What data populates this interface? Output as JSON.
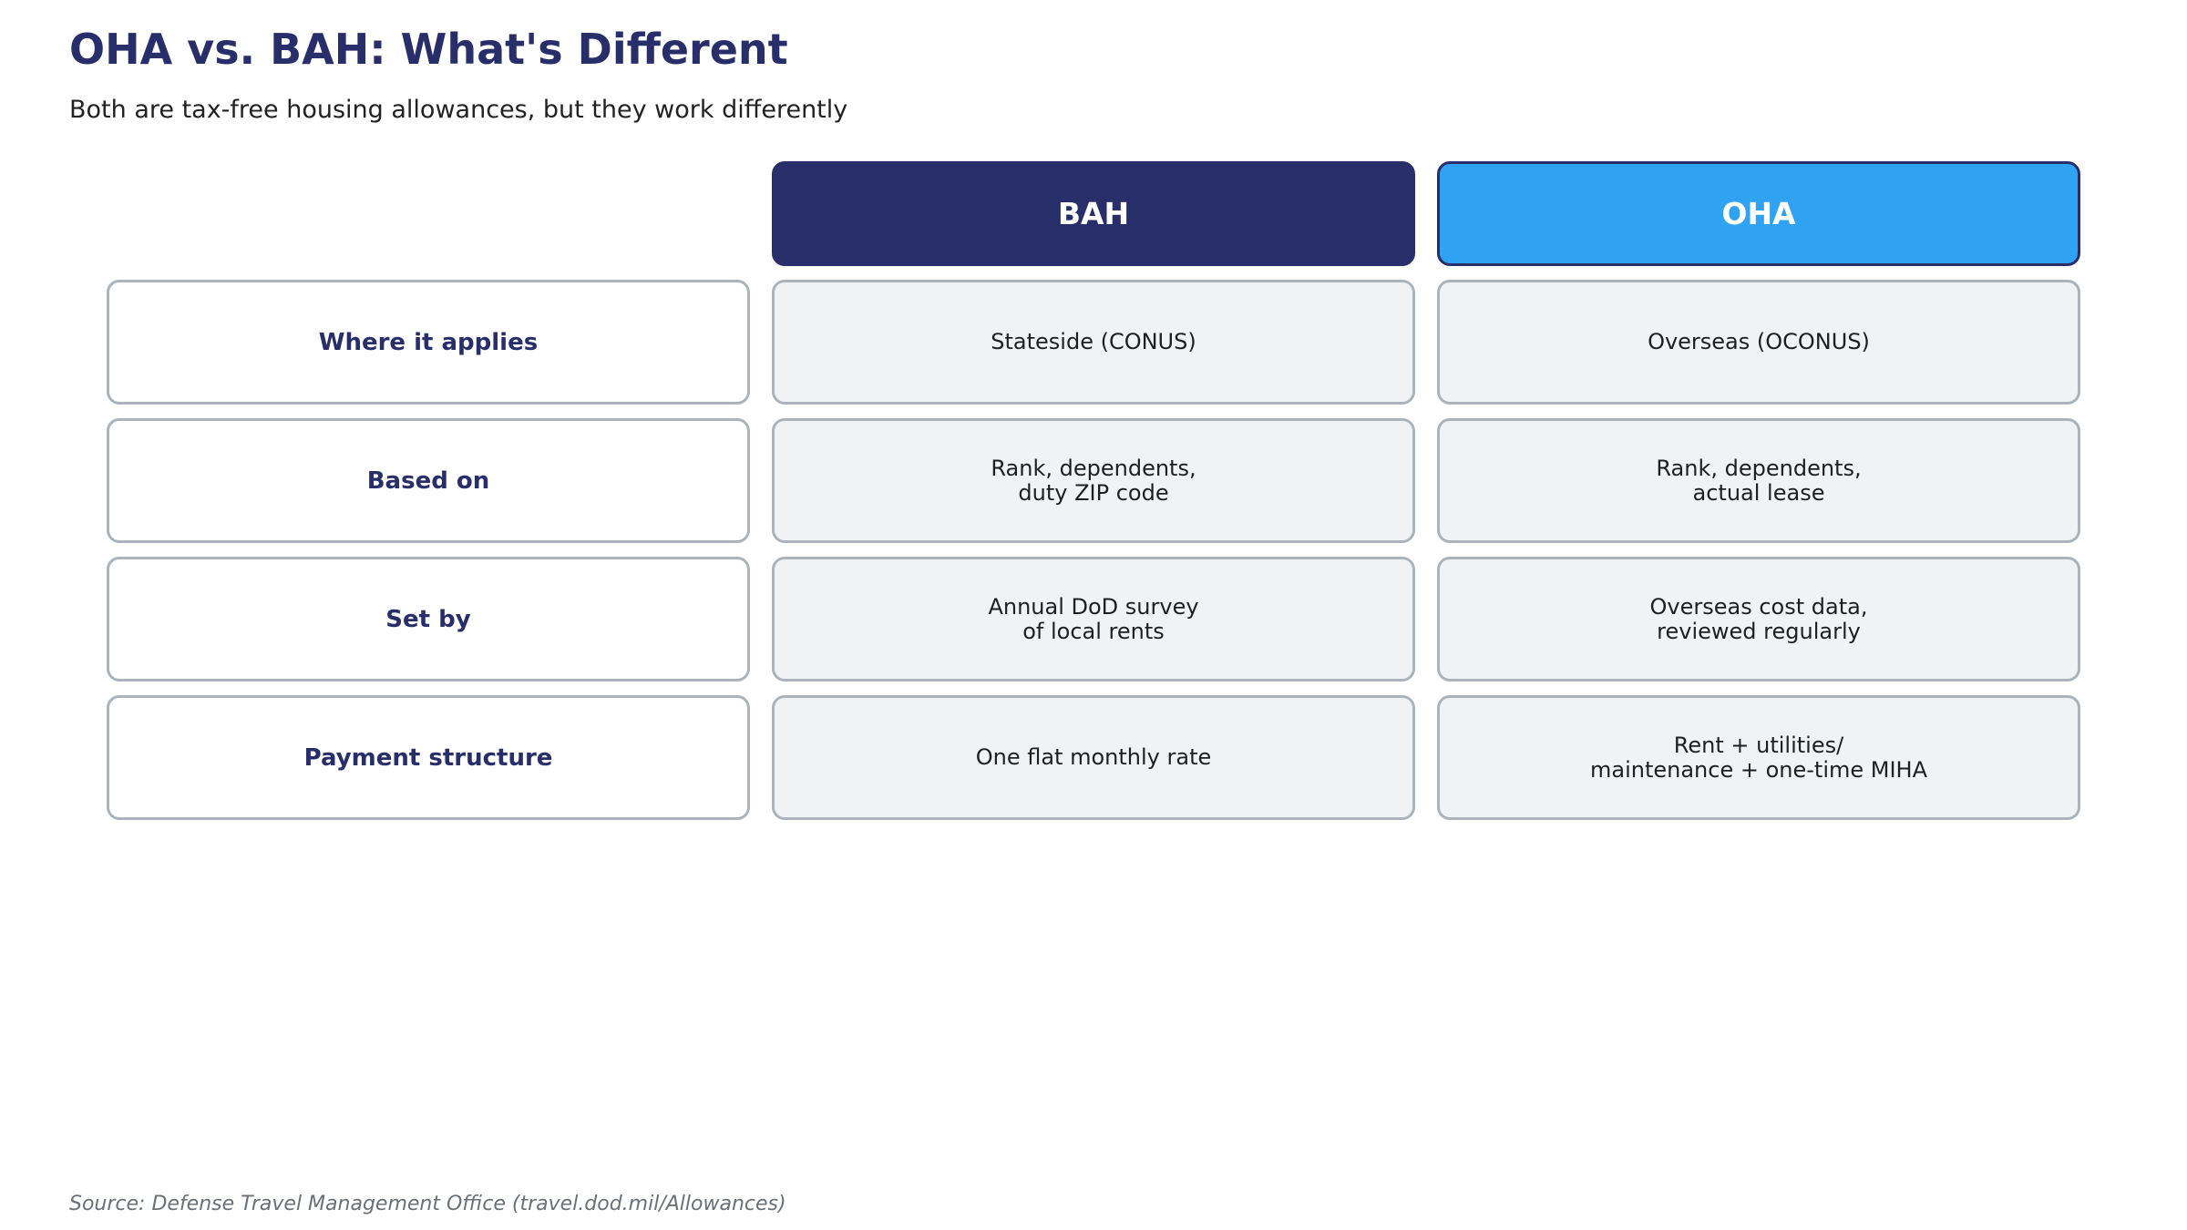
{
  "title": "OHA vs. BAH: What's Different",
  "subtitle": "Both are tax-free housing allowances, but they work differently",
  "columns": [
    {
      "label": "BAH",
      "color": "#282e6a"
    },
    {
      "label": "OHA",
      "color": "#2fa3f2"
    }
  ],
  "rows": [
    {
      "label": "Where it applies",
      "bah": "Stateside (CONUS)",
      "oha": "Overseas (OCONUS)"
    },
    {
      "label": "Based on",
      "bah": "Rank, dependents,\nduty ZIP code",
      "oha": "Rank, dependents,\nactual lease"
    },
    {
      "label": "Set by",
      "bah": "Annual DoD survey\nof local rents",
      "oha": "Overseas cost data,\nreviewed regularly"
    },
    {
      "label": "Payment structure",
      "bah": "One flat monthly rate",
      "oha": "Rent + utilities/\nmaintenance + one-time MIHA"
    }
  ],
  "source": "Source: Defense Travel Management Office (travel.dod.mil/Allowances)"
}
